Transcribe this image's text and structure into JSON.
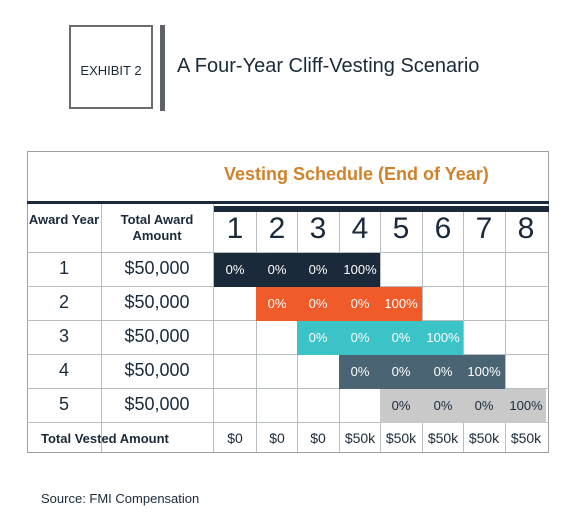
{
  "exhibit": {
    "label": "EXHIBIT 2",
    "title": "A Four-Year Cliff-Vesting Scenario"
  },
  "table": {
    "vesting_header": "Vesting Schedule (End of Year)",
    "col_award_year": "Award Year",
    "col_total_award": "Total Award Amount",
    "years": [
      "1",
      "2",
      "3",
      "4",
      "5",
      "6",
      "7",
      "8"
    ],
    "rows": [
      {
        "award_year": "1",
        "amount": "$50,000",
        "start_year": 1,
        "cells": [
          "0%",
          "0%",
          "0%",
          "100%"
        ],
        "color": "#1b2a3a"
      },
      {
        "award_year": "2",
        "amount": "$50,000",
        "start_year": 2,
        "cells": [
          "0%",
          "0%",
          "0%",
          "100%"
        ],
        "color": "#f15a29"
      },
      {
        "award_year": "3",
        "amount": "$50,000",
        "start_year": 3,
        "cells": [
          "0%",
          "0%",
          "0%",
          "100%"
        ],
        "color": "#3cc3c8"
      },
      {
        "award_year": "4",
        "amount": "$50,000",
        "start_year": 4,
        "cells": [
          "0%",
          "0%",
          "0%",
          "100%"
        ],
        "color": "#4a6473"
      },
      {
        "award_year": "5",
        "amount": "$50,000",
        "start_year": 5,
        "cells": [
          "0%",
          "0%",
          "0%",
          "100%"
        ],
        "color": "#c9c9c9"
      }
    ],
    "total_label": "Total Vested Amount",
    "totals": [
      "$0",
      "$0",
      "$0",
      "$50k",
      "$50k",
      "$50k",
      "$50k",
      "$50k"
    ]
  },
  "source": "Source: FMI Compensation"
}
